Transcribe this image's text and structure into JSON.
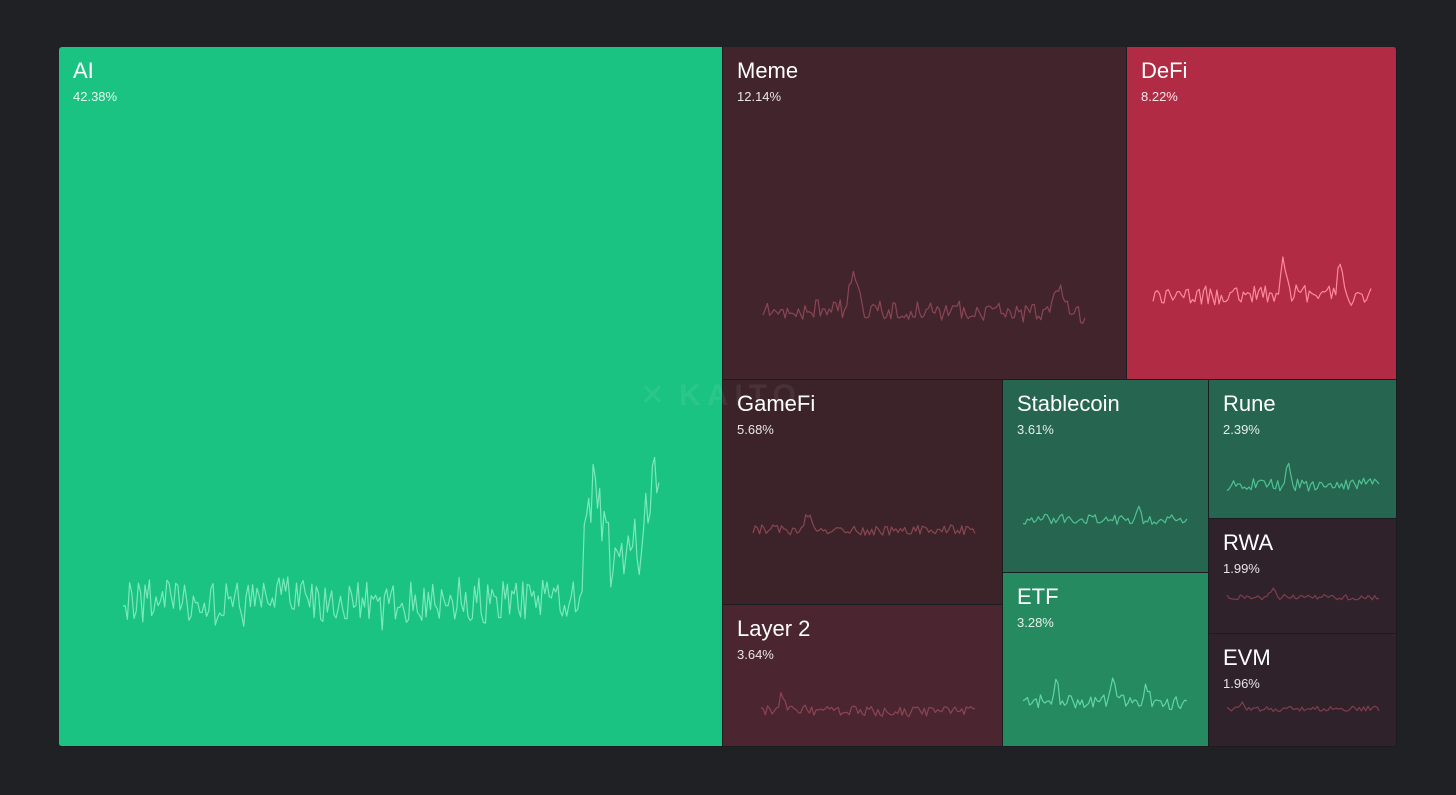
{
  "chart_data": {
    "type": "treemap",
    "title": "",
    "watermark": "KAITO",
    "positive_color": "#1bc382",
    "negative_color": "#b12b45",
    "items": [
      {
        "name": "AI",
        "share_label": "42.38%",
        "value": 42.38,
        "trend": "up",
        "color": "#1bc382",
        "line_color": "#7be8bc"
      },
      {
        "name": "Meme",
        "share_label": "12.14%",
        "value": 12.14,
        "trend": "down",
        "color": "#42242c",
        "line_color": "#8a4653"
      },
      {
        "name": "DeFi",
        "share_label": "8.22%",
        "value": 8.22,
        "trend": "down",
        "color": "#b12b45",
        "line_color": "#ff8a98"
      },
      {
        "name": "GameFi",
        "share_label": "5.68%",
        "value": 5.68,
        "trend": "down",
        "color": "#3b2329",
        "line_color": "#8a4653"
      },
      {
        "name": "Stablecoin",
        "share_label": "3.61%",
        "value": 3.61,
        "trend": "up",
        "color": "#26654f",
        "line_color": "#4fc294"
      },
      {
        "name": "Rune",
        "share_label": "2.39%",
        "value": 2.39,
        "trend": "up",
        "color": "#26654f",
        "line_color": "#4fc294"
      },
      {
        "name": "RWA",
        "share_label": "1.99%",
        "value": 1.99,
        "trend": "down",
        "color": "#30222a",
        "line_color": "#7e3e4b"
      },
      {
        "name": "EVM",
        "share_label": "1.96%",
        "value": 1.96,
        "trend": "down",
        "color": "#30222a",
        "line_color": "#7e3e4b"
      },
      {
        "name": "Layer 2",
        "share_label": "3.64%",
        "value": 3.64,
        "trend": "down",
        "color": "#4b2530",
        "line_color": "#8a4653"
      },
      {
        "name": "ETF",
        "share_label": "3.28%",
        "value": 3.28,
        "trend": "up",
        "color": "#258a5f",
        "line_color": "#60d6a4"
      }
    ]
  }
}
